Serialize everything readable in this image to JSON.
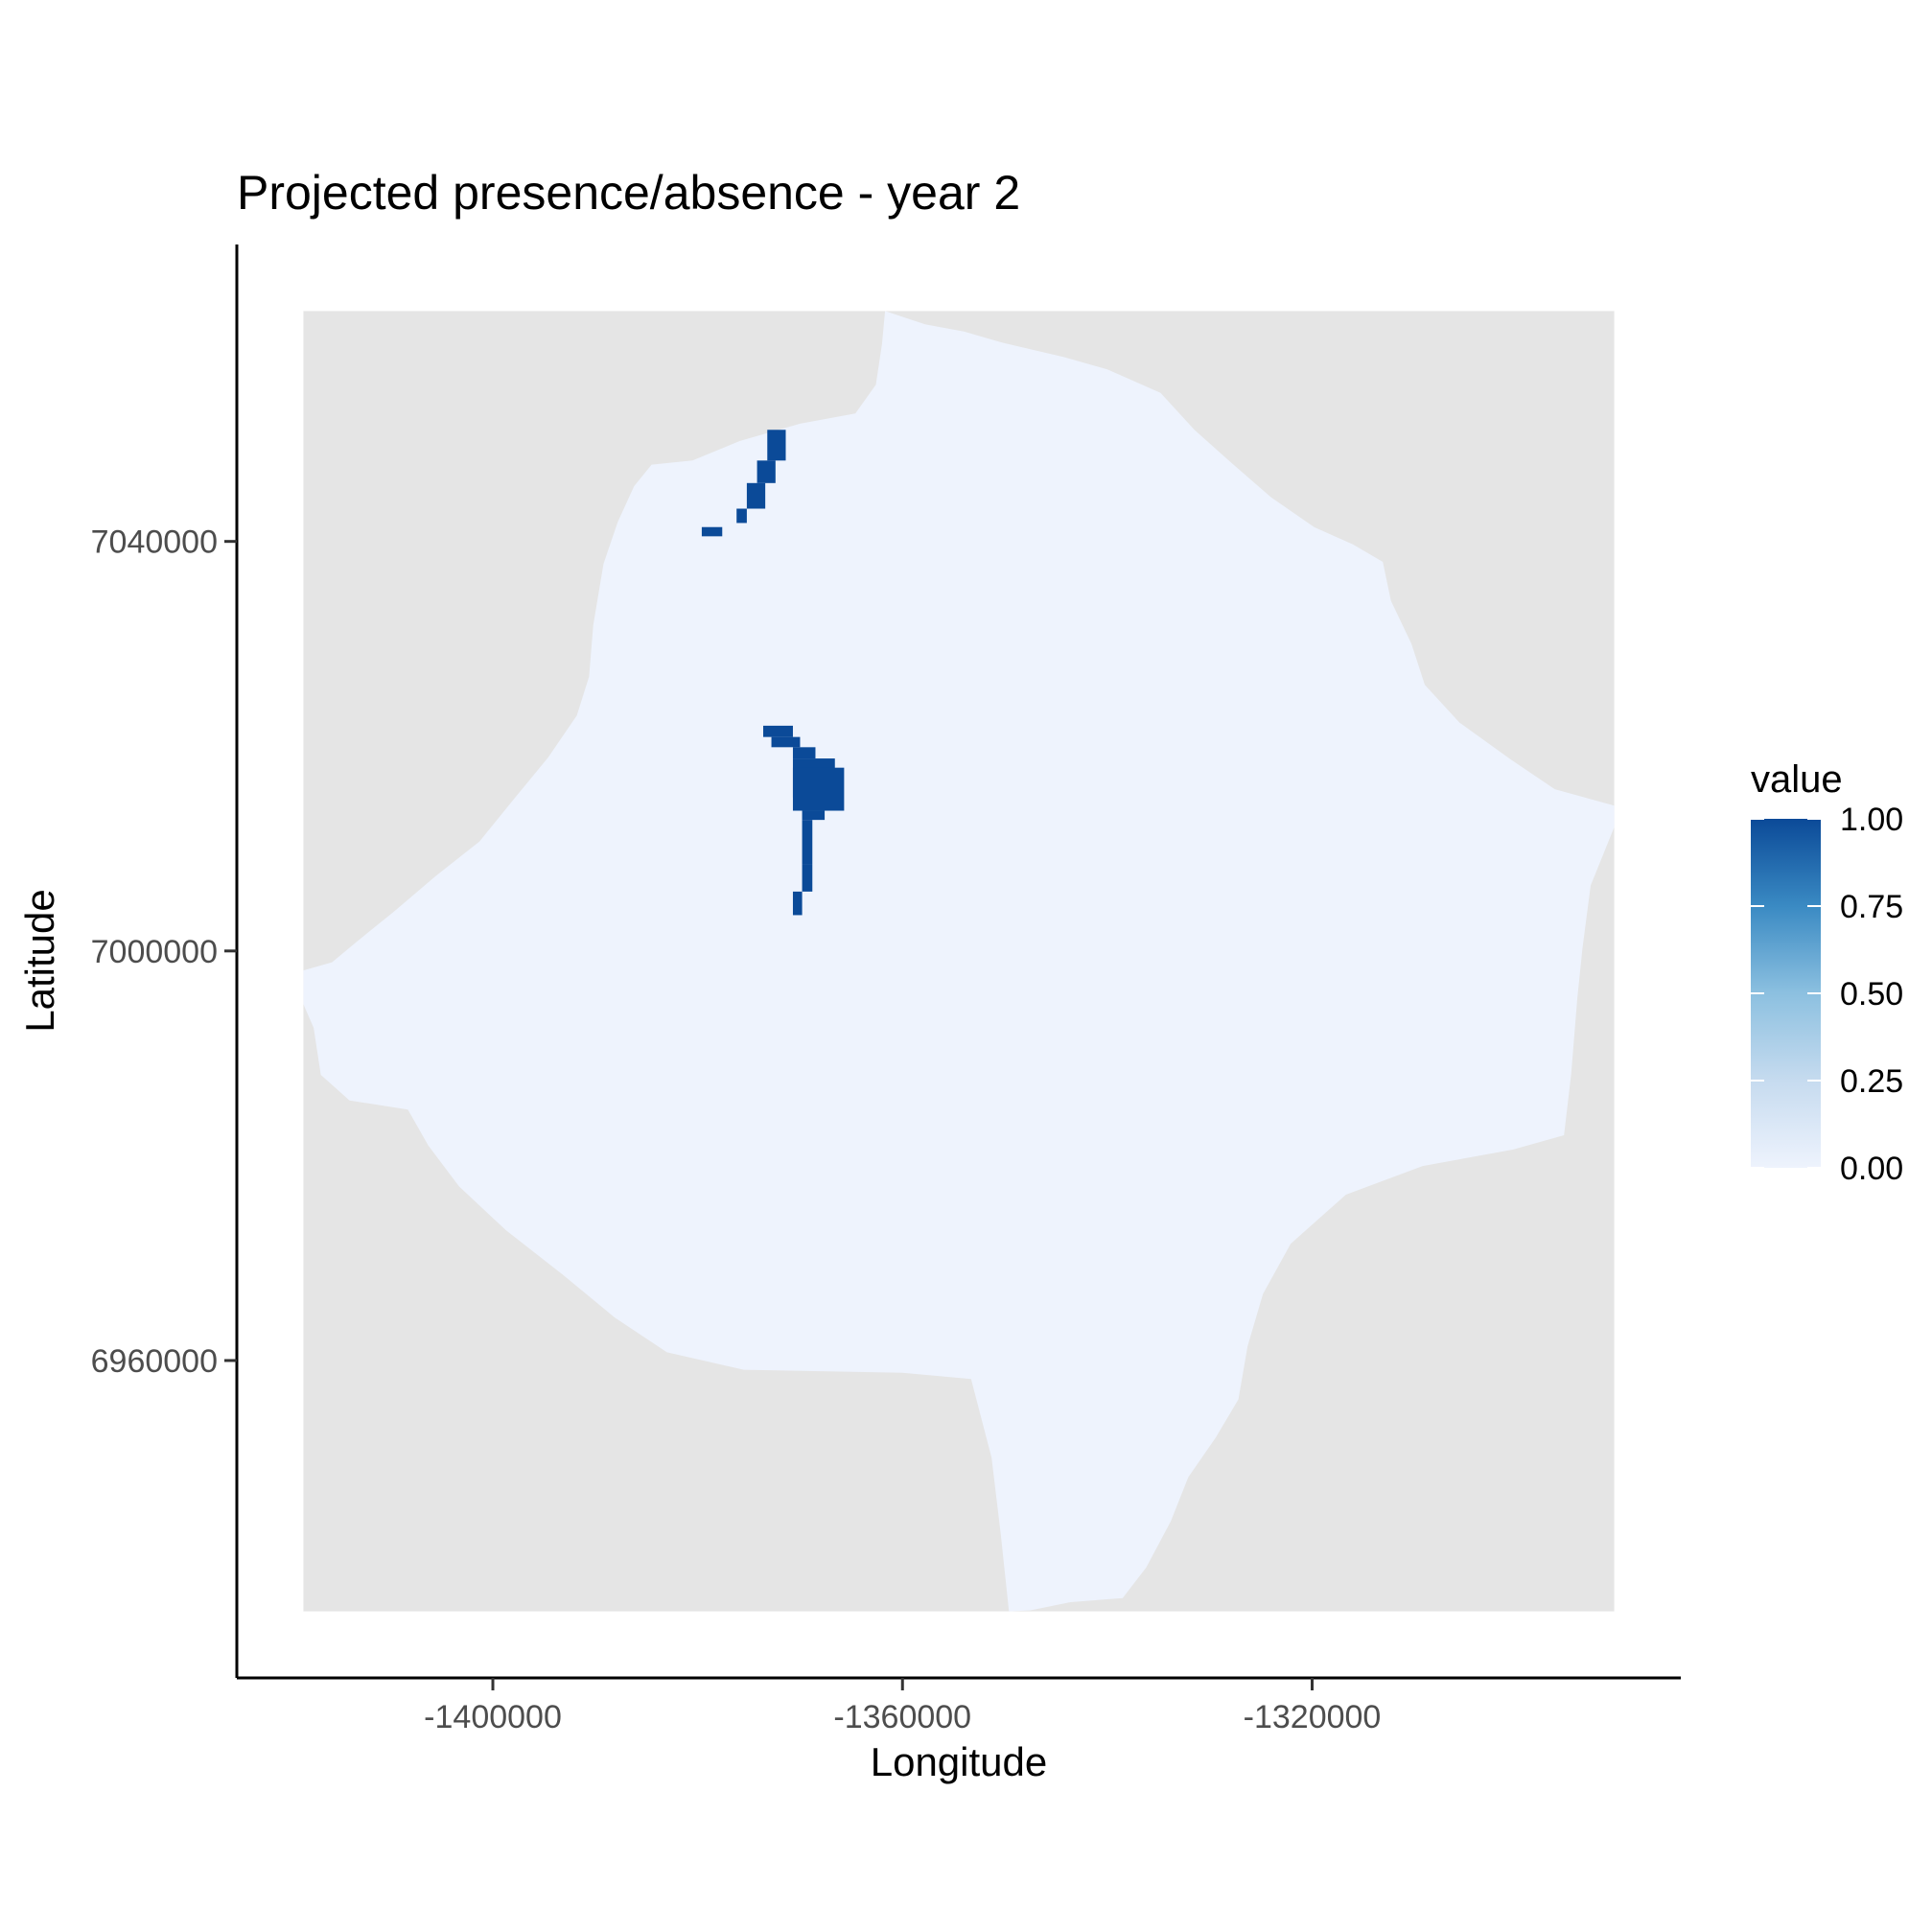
{
  "chart_data": {
    "type": "heatmap",
    "title": "Projected presence/absence - year 2",
    "xlabel": "Longitude",
    "ylabel": "Latitude",
    "x_ticks": [
      -1400000,
      -1360000,
      -1320000
    ],
    "x_tick_labels": [
      "-1400000",
      "-1360000",
      "-1320000"
    ],
    "y_ticks": [
      7040000,
      7000000,
      6960000
    ],
    "y_tick_labels": [
      "7040000",
      "7000000",
      "6960000"
    ],
    "xlim": [
      -1425000,
      -1284000
    ],
    "ylim": [
      6929000,
      7069000
    ],
    "raster_extent": {
      "x": [
        -1418500,
        -1290500
      ],
      "y": [
        6935500,
        7062500
      ]
    },
    "grid": false,
    "legend": {
      "title": "value",
      "position": "right",
      "breaks": [
        1.0,
        0.75,
        0.5,
        0.25,
        0.0
      ],
      "labels": [
        "1.00",
        "0.75",
        "0.50",
        "0.25",
        "0.00"
      ],
      "colors": {
        "low": "#eef3fd",
        "high": "#0b4a98"
      }
    },
    "background_color": "#e5e5e5",
    "region_boundary": [
      [
        -1361700,
        7062500
      ],
      [
        -1357800,
        7061200
      ],
      [
        -1354000,
        7060500
      ],
      [
        -1350200,
        7059400
      ],
      [
        -1344200,
        7058000
      ],
      [
        -1340000,
        7056800
      ],
      [
        -1334800,
        7054500
      ],
      [
        -1331500,
        7050900
      ],
      [
        -1327800,
        7047600
      ],
      [
        -1324000,
        7044300
      ],
      [
        -1319800,
        7041400
      ],
      [
        -1316000,
        7039700
      ],
      [
        -1313100,
        7038000
      ],
      [
        -1312300,
        7034200
      ],
      [
        -1310300,
        7030000
      ],
      [
        -1309000,
        7026000
      ],
      [
        -1305600,
        7022300
      ],
      [
        -1300600,
        7018700
      ],
      [
        -1296300,
        7015800
      ],
      [
        -1290500,
        7014200
      ],
      [
        -1290500,
        7012100
      ],
      [
        -1292800,
        7006400
      ],
      [
        -1293600,
        7000300
      ],
      [
        -1294100,
        6995400
      ],
      [
        -1294700,
        6988000
      ],
      [
        -1295400,
        6982000
      ],
      [
        -1300400,
        6980600
      ],
      [
        -1309200,
        6979000
      ],
      [
        -1316700,
        6976200
      ],
      [
        -1322100,
        6971400
      ],
      [
        -1324800,
        6966500
      ],
      [
        -1326300,
        6961400
      ],
      [
        -1327200,
        6956200
      ],
      [
        -1329400,
        6952500
      ],
      [
        -1332100,
        6948600
      ],
      [
        -1333800,
        6944300
      ],
      [
        -1336200,
        6939800
      ],
      [
        -1338500,
        6936800
      ],
      [
        -1343600,
        6936400
      ],
      [
        -1347500,
        6935600
      ],
      [
        -1349600,
        6935500
      ],
      [
        -1350400,
        6943000
      ],
      [
        -1351300,
        6950500
      ],
      [
        -1353300,
        6958200
      ],
      [
        -1360000,
        6958800
      ],
      [
        -1375500,
        6959100
      ],
      [
        -1383000,
        6960800
      ],
      [
        -1388100,
        6964200
      ],
      [
        -1393200,
        6968400
      ],
      [
        -1398700,
        6972700
      ],
      [
        -1403300,
        6977000
      ],
      [
        -1406300,
        6981000
      ],
      [
        -1408300,
        6984500
      ],
      [
        -1414000,
        6985400
      ],
      [
        -1416800,
        6987900
      ],
      [
        -1417500,
        6992500
      ],
      [
        -1418500,
        6994800
      ],
      [
        -1418500,
        6998100
      ],
      [
        -1415700,
        6998900
      ],
      [
        -1413300,
        7000900
      ],
      [
        -1409600,
        7003900
      ],
      [
        -1405600,
        7007300
      ],
      [
        -1401300,
        7010700
      ],
      [
        -1397900,
        7014900
      ],
      [
        -1394600,
        7018900
      ],
      [
        -1391800,
        7023000
      ],
      [
        -1390600,
        7026800
      ],
      [
        -1390200,
        7031800
      ],
      [
        -1389200,
        7037800
      ],
      [
        -1387800,
        7041900
      ],
      [
        -1386200,
        7045400
      ],
      [
        -1384500,
        7047500
      ],
      [
        -1380500,
        7047900
      ],
      [
        -1375900,
        7049800
      ],
      [
        -1370000,
        7051500
      ],
      [
        -1364600,
        7052500
      ],
      [
        -1362600,
        7055300
      ],
      [
        -1362000,
        7059300
      ],
      [
        -1361700,
        7062500
      ]
    ],
    "presence_cells": [
      {
        "x": [
          -1373200,
          -1371400
        ],
        "y": [
          7047900,
          7050900
        ]
      },
      {
        "x": [
          -1374200,
          -1372400
        ],
        "y": [
          7045700,
          7047900
        ]
      },
      {
        "x": [
          -1375200,
          -1373400
        ],
        "y": [
          7043200,
          7045700
        ]
      },
      {
        "x": [
          -1376200,
          -1375200
        ],
        "y": [
          7041800,
          7043200
        ]
      },
      {
        "x": [
          -1379600,
          -1377600
        ],
        "y": [
          7040500,
          7041400
        ]
      },
      {
        "x": [
          -1373600,
          -1370700
        ],
        "y": [
          7020900,
          7022000
        ]
      },
      {
        "x": [
          -1372800,
          -1370000
        ],
        "y": [
          7019900,
          7020900
        ]
      },
      {
        "x": [
          -1370700,
          -1368500
        ],
        "y": [
          7018800,
          7019900
        ]
      },
      {
        "x": [
          -1370700,
          -1366600
        ],
        "y": [
          7015000,
          7018800
        ]
      },
      {
        "x": [
          -1370700,
          -1365700
        ],
        "y": [
          7013700,
          7017900
        ]
      },
      {
        "x": [
          -1369800,
          -1367600
        ],
        "y": [
          7012800,
          7013700
        ]
      },
      {
        "x": [
          -1369800,
          -1368800
        ],
        "y": [
          7008500,
          7012800
        ]
      },
      {
        "x": [
          -1369800,
          -1368800
        ],
        "y": [
          7005800,
          7008500
        ]
      },
      {
        "x": [
          -1370700,
          -1369800
        ],
        "y": [
          7003500,
          7005800
        ]
      }
    ]
  }
}
